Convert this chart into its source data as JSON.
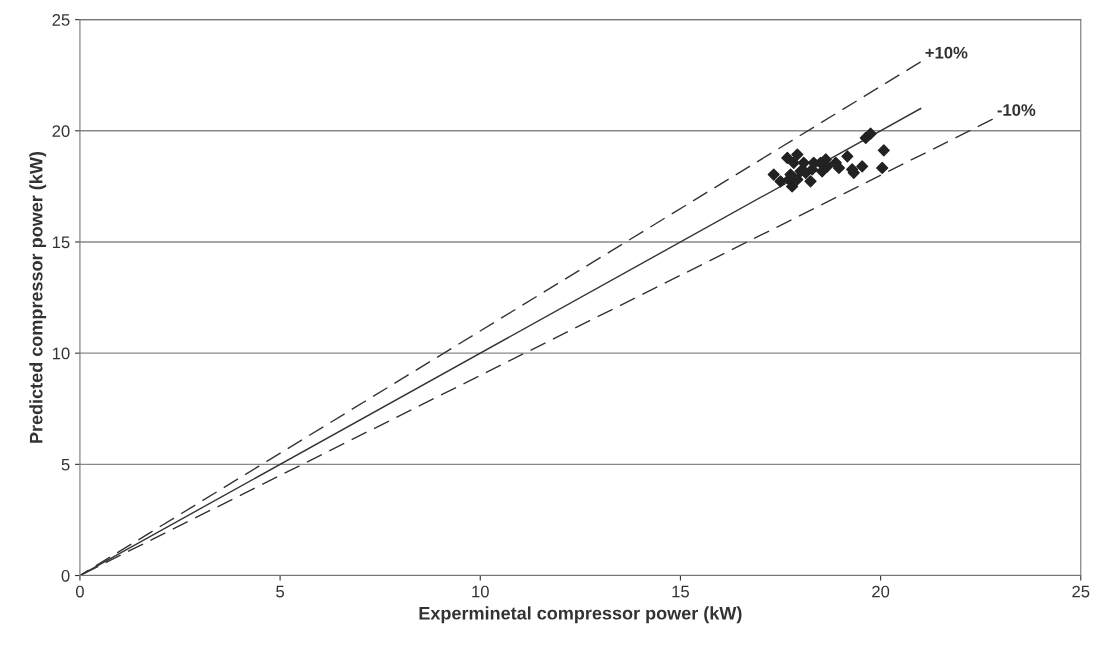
{
  "chart_data": {
    "type": "scatter",
    "xlabel": "Experminetal compressor power (kW)",
    "ylabel": "Predicted compressor power (kW)",
    "xlim": [
      0,
      25
    ],
    "ylim": [
      0,
      25
    ],
    "xticks": [
      0,
      5,
      10,
      15,
      20,
      25
    ],
    "yticks": [
      0,
      5,
      10,
      15,
      20,
      25
    ],
    "grid": "y",
    "series": [
      {
        "marker": "diamond",
        "color": "#222222",
        "x": [
          19.63,
          19.75,
          20.08,
          20.04,
          19.54,
          19.29,
          19.33,
          19.17,
          18.96,
          18.88,
          18.63,
          18.67,
          18.5,
          18.54,
          18.33,
          18.25,
          17.79,
          17.67,
          17.92,
          17.83,
          18.08,
          18.0,
          17.75,
          18.13,
          17.92,
          17.71,
          17.33,
          17.5,
          18.29
        ],
        "values": [
          19.68,
          19.87,
          19.12,
          18.33,
          18.4,
          18.26,
          18.11,
          18.85,
          18.33,
          18.56,
          18.71,
          18.4,
          18.56,
          18.18,
          18.56,
          17.73,
          17.5,
          18.78,
          18.93,
          18.56,
          18.56,
          18.18,
          18.03,
          18.11,
          17.81,
          17.81,
          18.03,
          17.73,
          18.26
        ]
      },
      {
        "type": "line",
        "color": "#333333",
        "line_style": "solid",
        "x": [
          0,
          21
        ],
        "values": [
          0,
          21
        ]
      },
      {
        "type": "line",
        "color": "#333333",
        "line_style": "dashed",
        "x": [
          0,
          21
        ],
        "values": [
          0,
          23.1
        ]
      },
      {
        "type": "line",
        "color": "#333333",
        "line_style": "dashed",
        "x": [
          0,
          22.8
        ],
        "values": [
          0,
          20.52
        ]
      }
    ],
    "annotations": [
      {
        "text": "+10%",
        "x": 21,
        "y": 23.1
      },
      {
        "text": "-10%",
        "x": 22.8,
        "y": 20.52
      }
    ]
  }
}
